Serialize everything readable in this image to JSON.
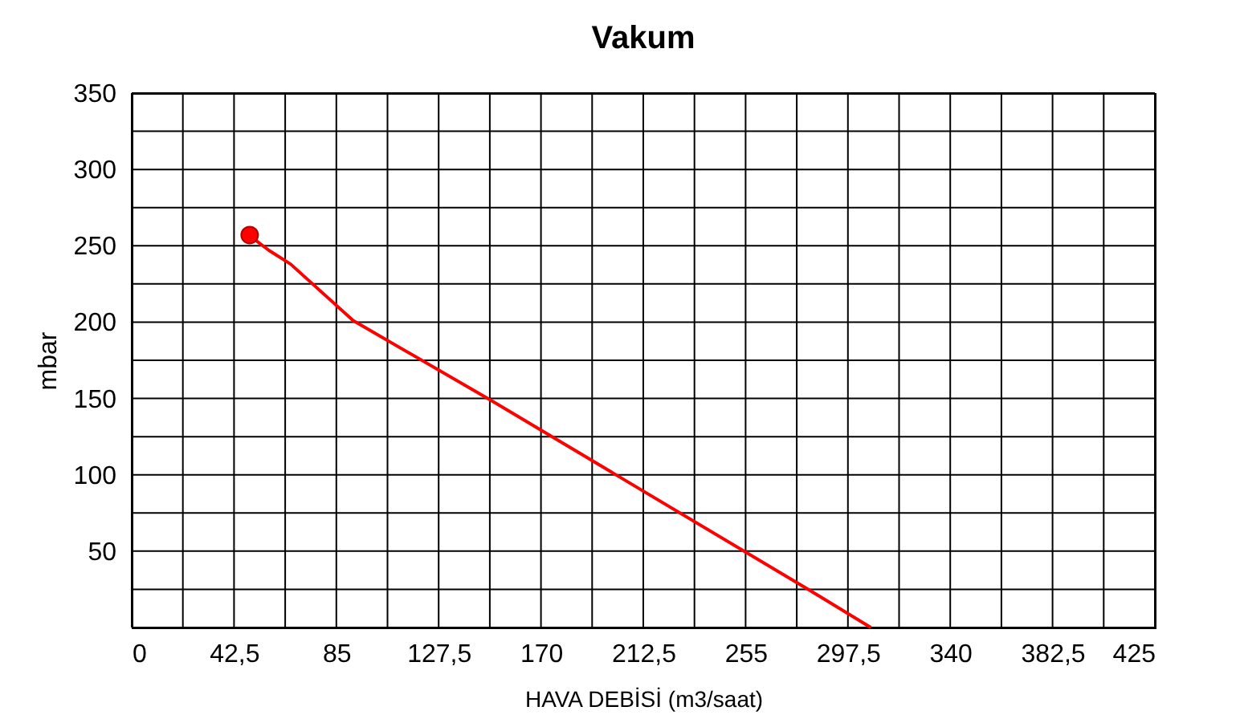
{
  "chart_data": {
    "type": "line",
    "title": "Vakum",
    "xlabel": "HAVA DEBİSİ (m3/saat)",
    "ylabel": "mbar",
    "xlim": [
      0,
      425
    ],
    "ylim": [
      0,
      350
    ],
    "xticks": [
      0,
      {
        "value": 21.25,
        "label": null
      },
      {
        "value": 42.5,
        "label": "42,5"
      },
      {
        "value": 63.75,
        "label": null
      },
      85,
      {
        "value": 106.25,
        "label": null
      },
      {
        "value": 127.5,
        "label": "127,5"
      },
      {
        "value": 148.75,
        "label": null
      },
      170,
      {
        "value": 191.25,
        "label": null
      },
      {
        "value": 212.5,
        "label": "212,5"
      },
      {
        "value": 233.75,
        "label": null
      },
      255,
      {
        "value": 276.25,
        "label": null
      },
      {
        "value": 297.5,
        "label": "297,5"
      },
      {
        "value": 318.75,
        "label": null
      },
      340,
      {
        "value": 361.25,
        "label": null
      },
      {
        "value": 382.5,
        "label": "382,5"
      },
      {
        "value": 403.75,
        "label": null
      },
      425
    ],
    "yticks": [
      {
        "value": 0,
        "label": null
      },
      {
        "value": 25,
        "label": null
      },
      50,
      {
        "value": 75,
        "label": null
      },
      100,
      {
        "value": 125,
        "label": null
      },
      150,
      {
        "value": 175,
        "label": null
      },
      200,
      {
        "value": 225,
        "label": null
      },
      250,
      {
        "value": 275,
        "label": null
      },
      300,
      {
        "value": 325,
        "label": null
      },
      350
    ],
    "grid": true,
    "line_style": "solid",
    "series": [
      {
        "color": "#ff0000",
        "x": [
          49,
          52,
          57,
          66,
          92,
          149,
          281,
          307
        ],
        "values": [
          257,
          253,
          247,
          238,
          201,
          149,
          25,
          0
        ]
      },
      {
        "type": "scatter",
        "color": "#ff0000",
        "marker": "circle",
        "x": [
          49
        ],
        "values": [
          257
        ]
      }
    ]
  }
}
